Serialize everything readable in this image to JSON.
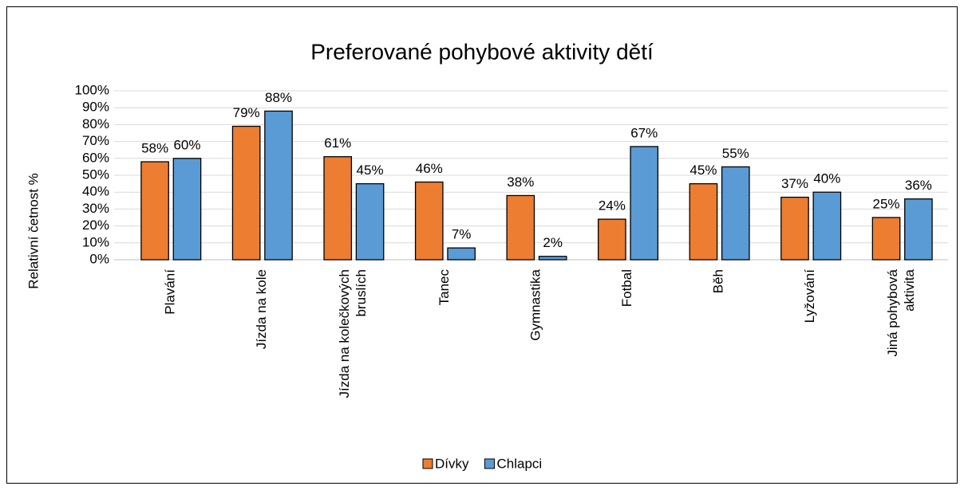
{
  "chart_data": {
    "type": "bar",
    "title": "Preferované pohybové aktivity dětí",
    "y_label": "Relativní četnost %",
    "categories": [
      "Plavání",
      "Jízda na kole",
      "Jízda na kolečkových bruslích",
      "Tanec",
      "Gymnastika",
      "Fotbal",
      "Běh",
      "Lyžování",
      "Jiná pohybová aktivita"
    ],
    "series": [
      {
        "name": "Dívky",
        "color": "#ed7d31",
        "values": [
          58,
          79,
          61,
          46,
          38,
          24,
          45,
          37,
          25
        ],
        "value_labels": [
          "58%",
          "79%",
          "61%",
          "46%",
          "38%",
          "24%",
          "45%",
          "37%",
          "25%"
        ]
      },
      {
        "name": "Chlapci",
        "color": "#5b9bd5",
        "values": [
          60,
          88,
          45,
          7,
          2,
          67,
          55,
          40,
          36
        ],
        "value_labels": [
          "60%",
          "88%",
          "45%",
          "7%",
          "2%",
          "67%",
          "55%",
          "40%",
          "36%"
        ]
      }
    ],
    "ylim": [
      0,
      100
    ],
    "yticks": [
      {
        "value": 0,
        "label": "0%"
      },
      {
        "value": 10,
        "label": "10%"
      },
      {
        "value": 20,
        "label": "20%"
      },
      {
        "value": 30,
        "label": "30%"
      },
      {
        "value": 40,
        "label": "40%"
      },
      {
        "value": 50,
        "label": "50%"
      },
      {
        "value": 60,
        "label": "60%"
      },
      {
        "value": 70,
        "label": "70%"
      },
      {
        "value": 80,
        "label": "80%"
      },
      {
        "value": 90,
        "label": "90%"
      },
      {
        "value": 100,
        "label": "100%"
      }
    ],
    "grid": true,
    "legend": "bottom"
  }
}
